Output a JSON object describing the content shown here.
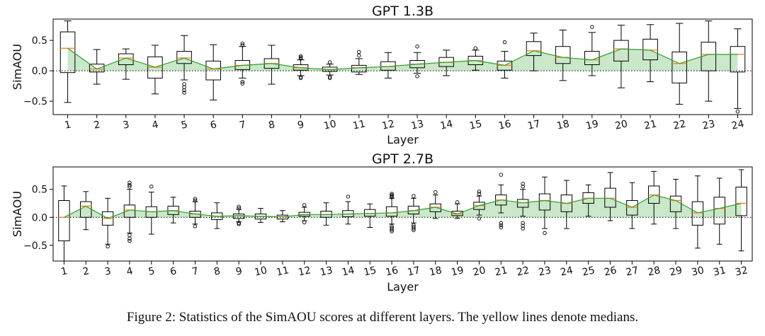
{
  "caption": "Figure 2: Statistics of the SimAOU scores at different layers. The yellow lines denote medians.",
  "chart_data": [
    {
      "type": "box",
      "title": "GPT 1.3B",
      "xlabel": "Layer",
      "ylabel": "SimAOU",
      "ylim": [
        -0.72,
        0.85
      ],
      "yticks": [
        -0.5,
        0.0,
        0.5
      ],
      "ytick_labels": [
        "−0.5",
        "0.0",
        "0.5"
      ],
      "categories": [
        "1",
        "2",
        "3",
        "4",
        "5",
        "6",
        "7",
        "8",
        "9",
        "10",
        "11",
        "12",
        "13",
        "14",
        "15",
        "16",
        "17",
        "18",
        "19",
        "20",
        "21",
        "22",
        "23",
        "24"
      ],
      "boxes": [
        {
          "whislo": -0.52,
          "q1": -0.03,
          "med": 0.37,
          "q3": 0.64,
          "whishi": 0.82,
          "fliers": []
        },
        {
          "whislo": -0.22,
          "q1": -0.02,
          "med": 0.03,
          "q3": 0.11,
          "whishi": 0.35,
          "fliers": []
        },
        {
          "whislo": -0.14,
          "q1": 0.1,
          "med": 0.21,
          "q3": 0.28,
          "whishi": 0.36,
          "fliers": []
        },
        {
          "whislo": -0.38,
          "q1": -0.12,
          "med": 0.06,
          "q3": 0.23,
          "whishi": 0.42,
          "fliers": []
        },
        {
          "whislo": -0.15,
          "q1": 0.12,
          "med": 0.21,
          "q3": 0.32,
          "whishi": 0.58,
          "fliers": [
            -0.22,
            -0.27,
            -0.32,
            -0.36
          ]
        },
        {
          "whislo": -0.48,
          "q1": -0.15,
          "med": 0.03,
          "q3": 0.16,
          "whishi": 0.43,
          "fliers": []
        },
        {
          "whislo": -0.12,
          "q1": 0.02,
          "med": 0.09,
          "q3": 0.17,
          "whishi": 0.4,
          "fliers": [
            0.42,
            0.45,
            -0.18,
            -0.21
          ]
        },
        {
          "whislo": -0.22,
          "q1": 0.04,
          "med": 0.12,
          "q3": 0.2,
          "whishi": 0.42,
          "fliers": []
        },
        {
          "whislo": -0.08,
          "q1": 0.01,
          "med": 0.05,
          "q3": 0.1,
          "whishi": 0.18,
          "fliers": [
            0.2,
            0.22,
            0.24,
            -0.1,
            -0.12
          ]
        },
        {
          "whislo": -0.07,
          "q1": -0.01,
          "med": 0.02,
          "q3": 0.06,
          "whishi": 0.11,
          "fliers": [
            0.14,
            -0.1,
            -0.12
          ]
        },
        {
          "whislo": -0.06,
          "q1": -0.02,
          "med": 0.05,
          "q3": 0.09,
          "whishi": 0.2,
          "fliers": [
            0.25,
            0.31
          ]
        },
        {
          "whislo": -0.12,
          "q1": 0.01,
          "med": 0.07,
          "q3": 0.15,
          "whishi": 0.3,
          "fliers": []
        },
        {
          "whislo": -0.04,
          "q1": 0.05,
          "med": 0.11,
          "q3": 0.17,
          "whishi": 0.3,
          "fliers": [
            0.4,
            -0.09
          ]
        },
        {
          "whislo": -0.08,
          "q1": 0.07,
          "med": 0.14,
          "q3": 0.22,
          "whishi": 0.34,
          "fliers": []
        },
        {
          "whislo": 0.01,
          "q1": 0.1,
          "med": 0.17,
          "q3": 0.24,
          "whishi": 0.34,
          "fliers": [
            0.37
          ]
        },
        {
          "whislo": -0.12,
          "q1": 0.01,
          "med": 0.09,
          "q3": 0.16,
          "whishi": 0.32,
          "fliers": [
            0.47
          ]
        },
        {
          "whislo": 0.0,
          "q1": 0.25,
          "med": 0.33,
          "q3": 0.48,
          "whishi": 0.62,
          "fliers": []
        },
        {
          "whislo": -0.16,
          "q1": 0.12,
          "med": 0.22,
          "q3": 0.4,
          "whishi": 0.67,
          "fliers": []
        },
        {
          "whislo": -0.08,
          "q1": 0.1,
          "med": 0.18,
          "q3": 0.32,
          "whishi": 0.63,
          "fliers": [
            0.72
          ]
        },
        {
          "whislo": -0.28,
          "q1": 0.16,
          "med": 0.36,
          "q3": 0.5,
          "whishi": 0.75,
          "fliers": []
        },
        {
          "whislo": -0.18,
          "q1": 0.18,
          "med": 0.34,
          "q3": 0.52,
          "whishi": 0.76,
          "fliers": []
        },
        {
          "whislo": -0.55,
          "q1": -0.2,
          "med": 0.12,
          "q3": 0.31,
          "whishi": 0.78,
          "fliers": []
        },
        {
          "whislo": -0.5,
          "q1": 0.0,
          "med": 0.27,
          "q3": 0.47,
          "whishi": 0.82,
          "fliers": []
        },
        {
          "whislo": -0.62,
          "q1": -0.02,
          "med": 0.27,
          "q3": 0.4,
          "whishi": 0.69,
          "fliers": [
            -0.67
          ]
        }
      ]
    },
    {
      "type": "box",
      "title": "GPT 2.7B",
      "xlabel": "Layer",
      "ylabel": "SimAOU",
      "ylim": [
        -0.78,
        0.9
      ],
      "yticks": [
        -0.5,
        0.0,
        0.5
      ],
      "ytick_labels": [
        "−0.5",
        "0.0",
        "0.5"
      ],
      "categories": [
        "1",
        "2",
        "3",
        "4",
        "5",
        "6",
        "7",
        "8",
        "9",
        "10",
        "11",
        "12",
        "13",
        "14",
        "15",
        "16",
        "17",
        "18",
        "19",
        "20",
        "21",
        "22",
        "23",
        "24",
        "25",
        "26",
        "27",
        "28",
        "29",
        "30",
        "31",
        "32"
      ],
      "boxes": [
        {
          "whislo": -0.78,
          "q1": -0.42,
          "med": 0.0,
          "q3": 0.3,
          "whishi": 0.56,
          "fliers": []
        },
        {
          "whislo": -0.22,
          "q1": 0.0,
          "med": 0.2,
          "q3": 0.28,
          "whishi": 0.46,
          "fliers": []
        },
        {
          "whislo": -0.48,
          "q1": -0.14,
          "med": -0.02,
          "q3": 0.1,
          "whishi": 0.34,
          "fliers": [
            -0.52
          ]
        },
        {
          "whislo": -0.28,
          "q1": 0.0,
          "med": 0.13,
          "q3": 0.22,
          "whishi": 0.5,
          "fliers": [
            0.55,
            0.58,
            0.62,
            -0.32,
            -0.38,
            -0.42
          ]
        },
        {
          "whislo": -0.3,
          "q1": 0.0,
          "med": 0.1,
          "q3": 0.19,
          "whishi": 0.45,
          "fliers": [
            0.55
          ]
        },
        {
          "whislo": -0.1,
          "q1": 0.05,
          "med": 0.12,
          "q3": 0.2,
          "whishi": 0.36,
          "fliers": []
        },
        {
          "whislo": -0.12,
          "q1": 0.0,
          "med": 0.06,
          "q3": 0.11,
          "whishi": 0.28,
          "fliers": [
            0.3,
            0.33,
            -0.16
          ]
        },
        {
          "whislo": -0.2,
          "q1": -0.04,
          "med": 0.02,
          "q3": 0.08,
          "whishi": 0.26,
          "fliers": []
        },
        {
          "whislo": -0.08,
          "q1": -0.02,
          "med": 0.03,
          "q3": 0.06,
          "whishi": 0.14,
          "fliers": [
            0.16,
            0.19,
            -0.1,
            -0.12
          ]
        },
        {
          "whislo": -0.09,
          "q1": -0.03,
          "med": 0.02,
          "q3": 0.06,
          "whishi": 0.16,
          "fliers": []
        },
        {
          "whislo": -0.08,
          "q1": -0.03,
          "med": 0.01,
          "q3": 0.04,
          "whishi": 0.12,
          "fliers": []
        },
        {
          "whislo": -0.06,
          "q1": 0.02,
          "med": 0.05,
          "q3": 0.09,
          "whishi": 0.18,
          "fliers": [
            0.22,
            -0.09
          ]
        },
        {
          "whislo": -0.14,
          "q1": 0.0,
          "med": 0.05,
          "q3": 0.11,
          "whishi": 0.26,
          "fliers": []
        },
        {
          "whislo": -0.12,
          "q1": 0.01,
          "med": 0.06,
          "q3": 0.12,
          "whishi": 0.28,
          "fliers": [
            0.37
          ]
        },
        {
          "whislo": -0.18,
          "q1": 0.02,
          "med": 0.07,
          "q3": 0.14,
          "whishi": 0.24,
          "fliers": []
        },
        {
          "whislo": -0.12,
          "q1": 0.02,
          "med": 0.08,
          "q3": 0.19,
          "whishi": 0.34,
          "fliers": [
            0.36,
            0.38,
            0.4,
            0.42,
            -0.16,
            -0.19,
            -0.22,
            -0.25
          ]
        },
        {
          "whislo": -0.1,
          "q1": 0.06,
          "med": 0.12,
          "q3": 0.2,
          "whishi": 0.34,
          "fliers": [
            0.38,
            -0.14,
            -0.17,
            -0.2,
            -0.23
          ]
        },
        {
          "whislo": -0.02,
          "q1": 0.1,
          "med": 0.18,
          "q3": 0.24,
          "whishi": 0.4,
          "fliers": [
            0.45
          ]
        },
        {
          "whislo": -0.02,
          "q1": 0.03,
          "med": 0.06,
          "q3": 0.11,
          "whishi": 0.24,
          "fliers": [
            0.27
          ]
        },
        {
          "whislo": 0.04,
          "q1": 0.14,
          "med": 0.21,
          "q3": 0.27,
          "whishi": 0.38,
          "fliers": [
            0.42,
            0.46,
            -0.02
          ]
        },
        {
          "whislo": 0.08,
          "q1": 0.22,
          "med": 0.31,
          "q3": 0.4,
          "whishi": 0.58,
          "fliers": [
            0.76,
            -0.1,
            -0.14,
            -0.18
          ]
        },
        {
          "whislo": 0.02,
          "q1": 0.18,
          "med": 0.26,
          "q3": 0.32,
          "whishi": 0.5,
          "fliers": [
            0.55,
            0.6,
            -0.1,
            -0.15,
            -0.2
          ]
        },
        {
          "whislo": -0.2,
          "q1": 0.13,
          "med": 0.3,
          "q3": 0.42,
          "whishi": 0.72,
          "fliers": [
            -0.28
          ]
        },
        {
          "whislo": -0.2,
          "q1": 0.1,
          "med": 0.25,
          "q3": 0.4,
          "whishi": 0.66,
          "fliers": []
        },
        {
          "whislo": 0.02,
          "q1": 0.25,
          "med": 0.34,
          "q3": 0.44,
          "whishi": 0.58,
          "fliers": []
        },
        {
          "whislo": -0.06,
          "q1": 0.18,
          "med": 0.34,
          "q3": 0.52,
          "whishi": 0.8,
          "fliers": []
        },
        {
          "whislo": -0.2,
          "q1": 0.04,
          "med": 0.18,
          "q3": 0.3,
          "whishi": 0.62,
          "fliers": []
        },
        {
          "whislo": -0.12,
          "q1": 0.25,
          "med": 0.4,
          "q3": 0.56,
          "whishi": 0.82,
          "fliers": []
        },
        {
          "whislo": -0.2,
          "q1": 0.1,
          "med": 0.3,
          "q3": 0.38,
          "whishi": 0.68,
          "fliers": []
        },
        {
          "whislo": -0.55,
          "q1": -0.14,
          "med": 0.08,
          "q3": 0.28,
          "whishi": 0.74,
          "fliers": []
        },
        {
          "whislo": -0.48,
          "q1": -0.12,
          "med": 0.16,
          "q3": 0.36,
          "whishi": 0.7,
          "fliers": []
        },
        {
          "whislo": -0.6,
          "q1": 0.03,
          "med": 0.25,
          "q3": 0.54,
          "whishi": 0.85,
          "fliers": []
        }
      ]
    }
  ],
  "colors": {
    "median": "#ff7f0e",
    "median_line": "#2ca02c",
    "fill": "#2ca02c",
    "box": "#000000"
  }
}
